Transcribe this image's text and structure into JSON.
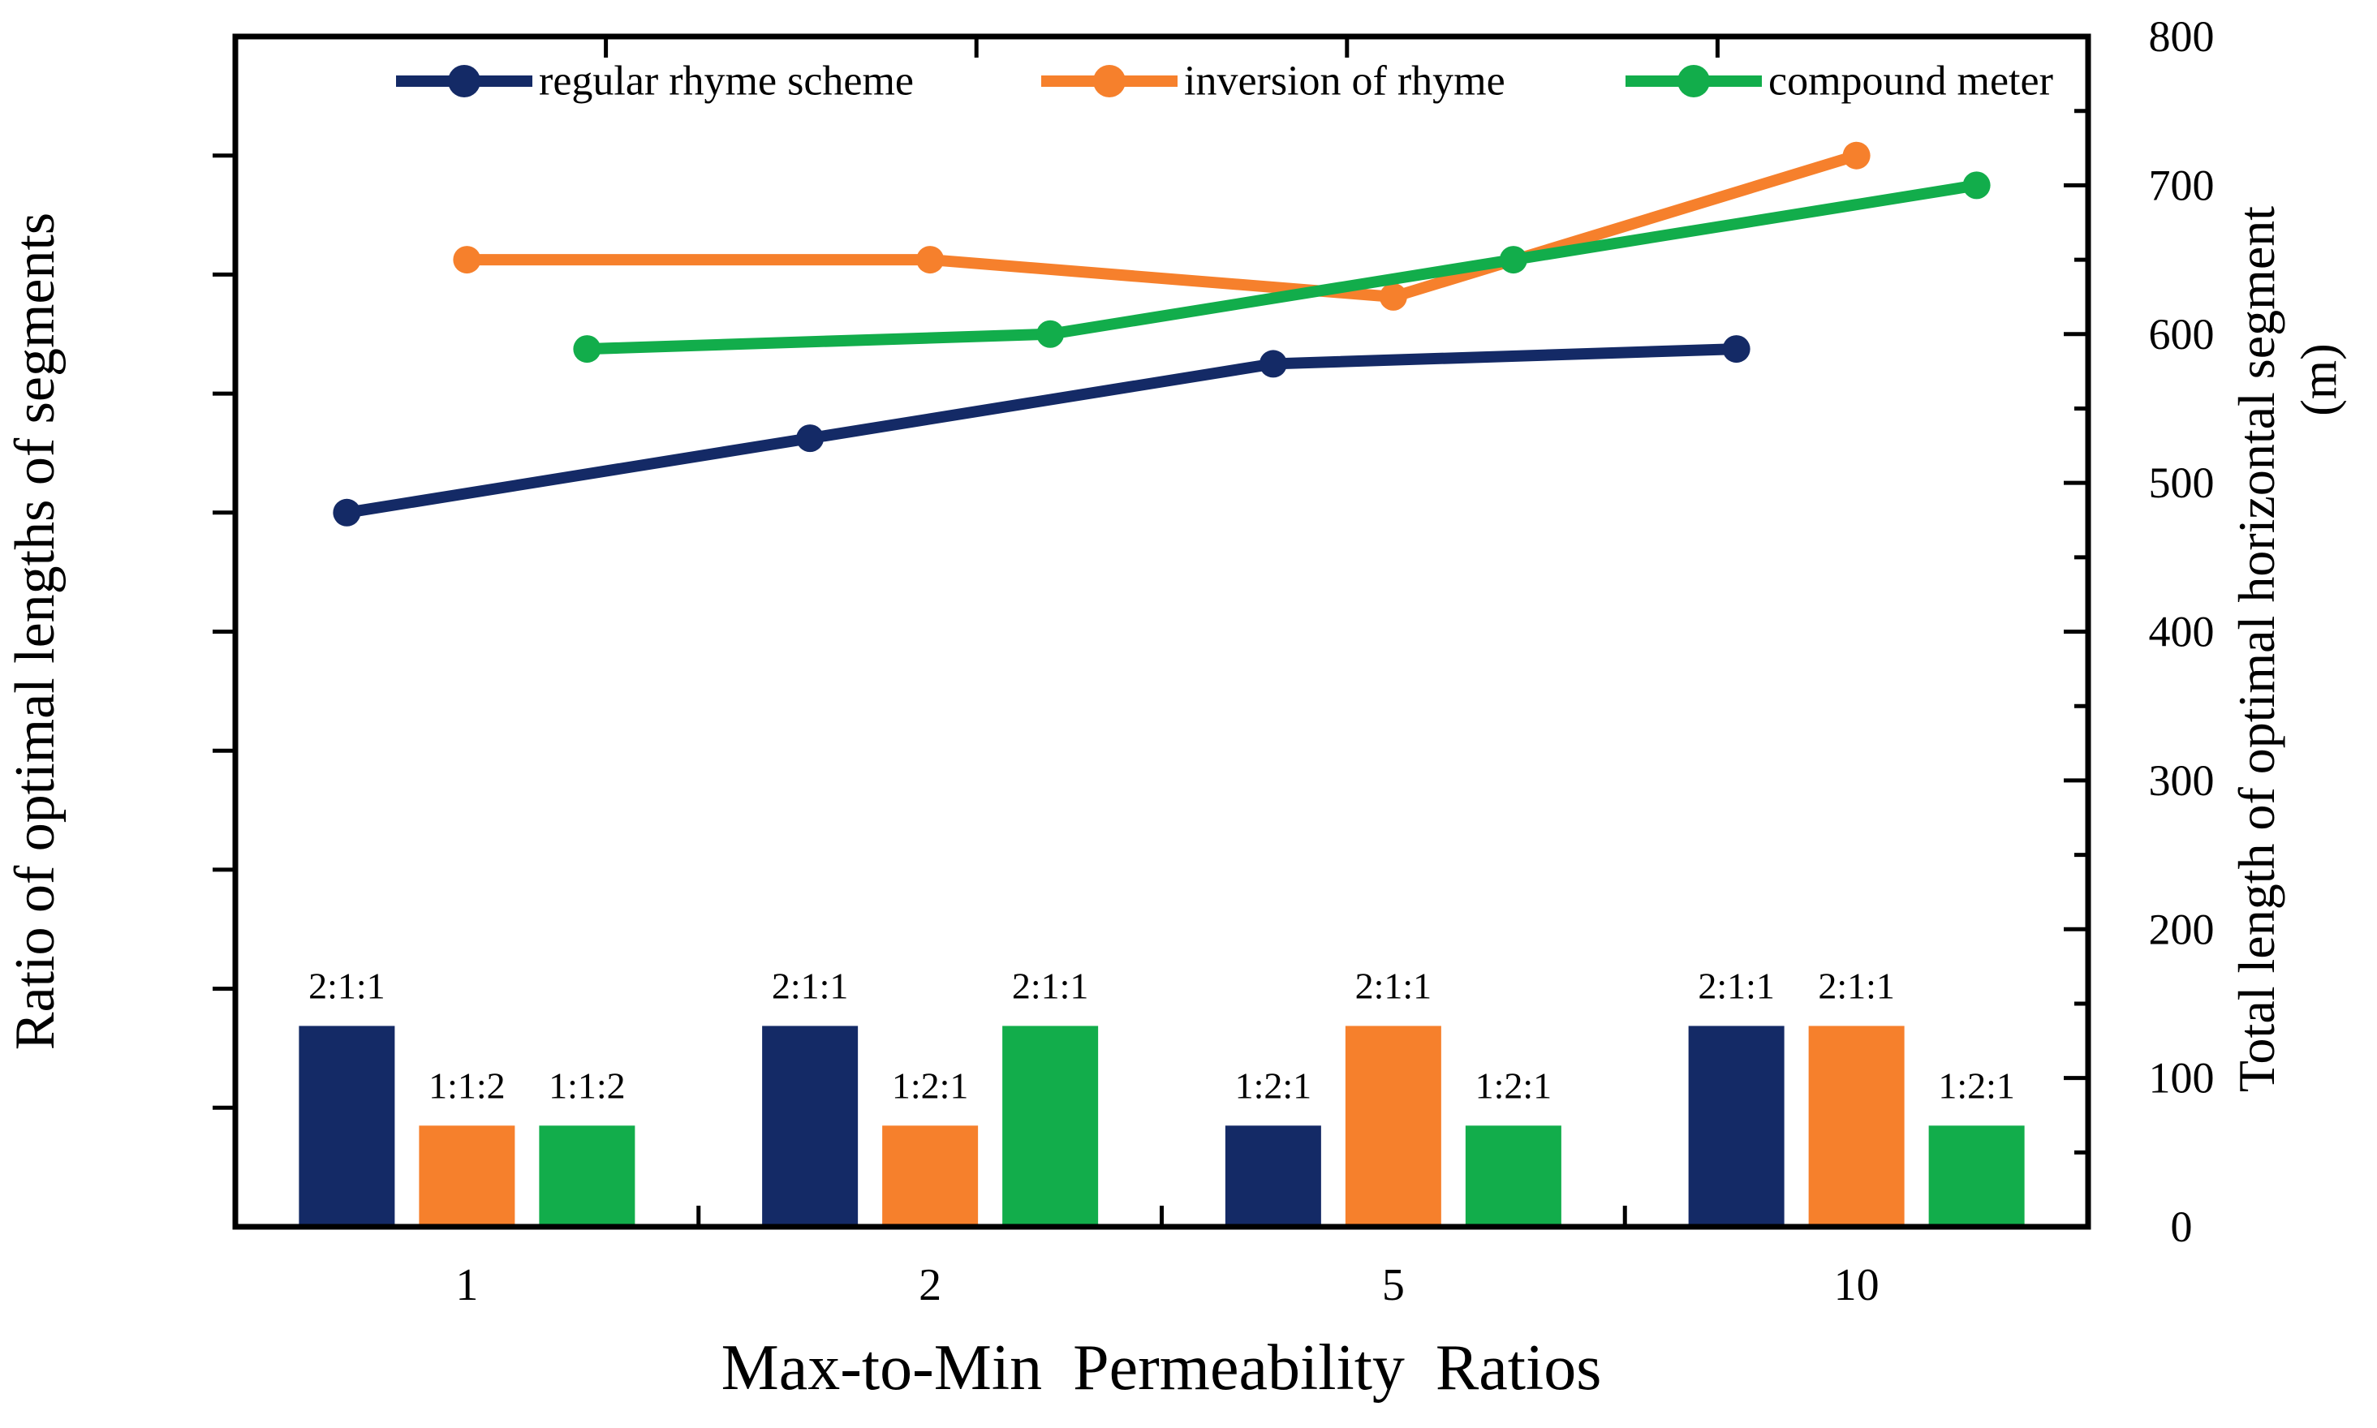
{
  "chart_data": {
    "type": "combo (grouped bar + line, dual y-axis)",
    "title": "",
    "categories": [
      "1",
      "2",
      "5",
      "10"
    ],
    "x_axis": {
      "label": "Max-to-Min Permeability Ratios",
      "tick_labels": [
        "1",
        "2",
        "5",
        "10"
      ]
    },
    "left_y_axis": {
      "label": "Ratio of optimal lengths of segments",
      "tick_labels_shown": false
    },
    "right_y_axis": {
      "label": "Total length of optimal horizontal segment",
      "unit": "(m)",
      "min": 0,
      "max": 800,
      "major_tick_step": 100,
      "minor_tick_step": 50,
      "tick_labels": [
        "0",
        "100",
        "200",
        "300",
        "400",
        "500",
        "600",
        "700",
        "800"
      ]
    },
    "legend": {
      "position": "top-inside",
      "entries": [
        "regular rhyme scheme",
        "inversion of rhyme",
        "compound meter"
      ]
    },
    "colors": {
      "navy": "#142a66",
      "orange": "#f6802c",
      "green": "#12ad4b"
    },
    "grid": false,
    "line_series": [
      {
        "name": "regular rhyme scheme",
        "color": "#142a66",
        "axis": "right",
        "values_m": [
          480,
          530,
          580,
          590
        ]
      },
      {
        "name": "inversion of rhyme",
        "color": "#f6802c",
        "axis": "right",
        "values_m": [
          650,
          650,
          625,
          720
        ]
      },
      {
        "name": "compound meter",
        "color": "#12ad4b",
        "axis": "right",
        "values_m": [
          590,
          600,
          650,
          700
        ]
      }
    ],
    "bar_series": [
      {
        "name": "regular rhyme scheme",
        "color": "#142a66",
        "heights_m": [
          135,
          135,
          68,
          135
        ],
        "ratio_labels": [
          "2:1:1",
          "2:1:1",
          "1:2:1",
          "2:1:1"
        ]
      },
      {
        "name": "inversion of rhyme",
        "color": "#f6802c",
        "heights_m": [
          68,
          68,
          135,
          135
        ],
        "ratio_labels": [
          "1:1:2",
          "1:2:1",
          "2:1:1",
          "2:1:1"
        ]
      },
      {
        "name": "compound meter",
        "color": "#12ad4b",
        "heights_m": [
          68,
          135,
          68,
          68
        ],
        "ratio_labels": [
          "1:1:2",
          "2:1:1",
          "1:2:1",
          "1:2:1"
        ]
      }
    ]
  }
}
